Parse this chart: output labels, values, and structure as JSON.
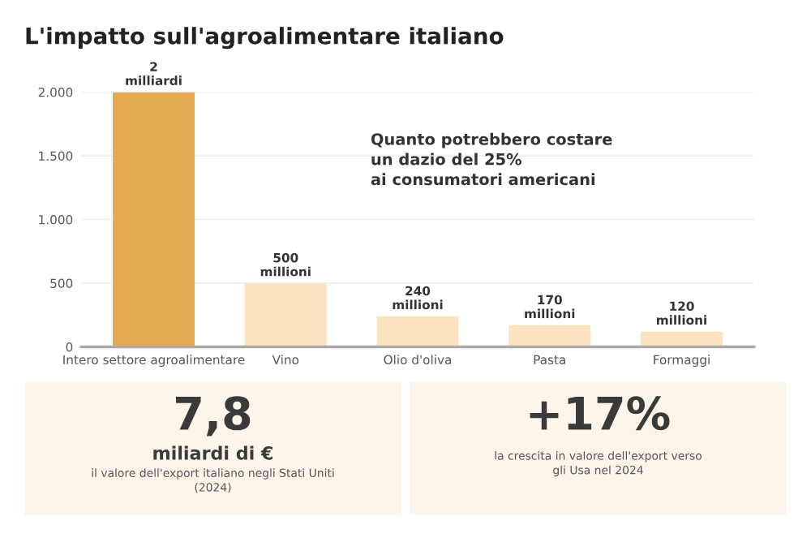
{
  "chart_data": [
    {
      "type": "bar",
      "title": "L'impatto sull'agroalimentare italiano",
      "categories": [
        "Intero settore agroalimentare",
        "Vino",
        "Olio d'oliva",
        "Pasta",
        "Formaggi"
      ],
      "values": [
        2000,
        500,
        240,
        170,
        120
      ],
      "colors": [
        "#e5a952",
        "#fce3c0",
        "#fce3c0",
        "#fce3c0",
        "#fce3c0"
      ],
      "annotations": [
        "Quanto potrebbero costare\nun dazio del 25%\nai consumatori americani",
        {
          "text": "2\nmilliardi",
          "x": "Intero settore agroalimentare",
          "y": 2000
        },
        {
          "text": "500\nmillioni",
          "x": "Vino",
          "y": 500
        },
        {
          "text": "240\nmillioni",
          "x": "Olio d'oliva",
          "y": 240
        },
        {
          "text": "170\nmillioni",
          "x": "Pasta",
          "y": 170
        },
        {
          "text": "120\nmillioni",
          "x": "Formaggi",
          "y": 120
        }
      ],
      "ylim": [
        0,
        2000
      ],
      "yticks": [
        0,
        500,
        {
          "value": 1000,
          "label": "1.000"
        },
        {
          "value": 1500,
          "label": "1.500"
        },
        {
          "value": 2000,
          "label": "2.000"
        }
      ],
      "grid": "y",
      "legend": false
    },
    {
      "type": "other",
      "color": "#fdf4ea",
      "annotations": [
        "7,8",
        "miliardi di €",
        "il valore dell'export italiano negli Stati Uniti\n(2024)"
      ]
    },
    {
      "type": "other",
      "color": "#fdf4ea",
      "annotations": [
        "+17%",
        "la crescita in valore dell'export verso\ngli Usa nel 2024"
      ]
    }
  ]
}
